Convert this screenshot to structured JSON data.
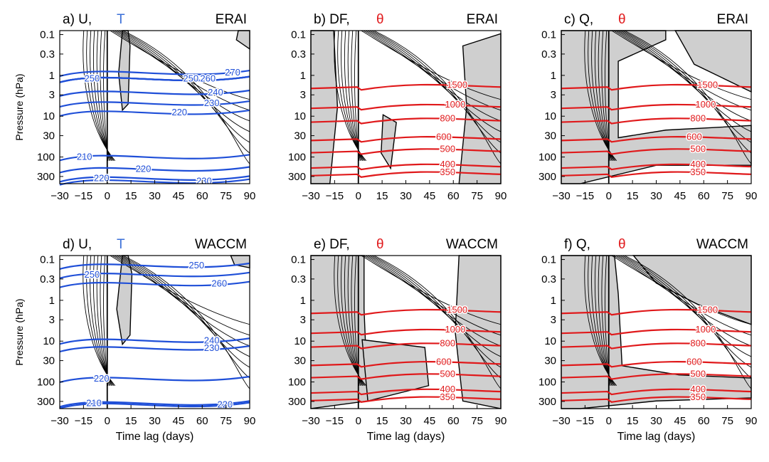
{
  "figure": {
    "shared": {
      "ylabel": "Pressure (hPa)",
      "xlabel": "Time lag (days)",
      "xticks": [
        "−30",
        "−15",
        "0",
        "15",
        "30",
        "45",
        "60",
        "75",
        "90"
      ],
      "yticks": [
        "0.1",
        "0.3",
        "1",
        "3",
        "10",
        "30",
        "100",
        "300"
      ]
    },
    "colors": {
      "T_contour": "#1f4fd8",
      "theta_contour": "#e0191b",
      "shading": "#cfcfcf",
      "contour": "#000000",
      "t_label": "#3a6fd8",
      "theta_label": "#e0191b"
    }
  },
  "chart_data": [
    {
      "id": "a",
      "type": "contour",
      "panel_label": "a) U,",
      "overlay_symbol": "T",
      "source": "ERAI",
      "xlim": [
        -30,
        90
      ],
      "x_ticks": [
        -30,
        -15,
        0,
        15,
        30,
        45,
        60,
        75,
        90
      ],
      "y_ticks_hPa": [
        0.1,
        0.3,
        1,
        3,
        10,
        30,
        100,
        300
      ],
      "y_scale": "log",
      "overlay_variable": "T",
      "overlay_contour_labels": [
        "250",
        "250",
        "260",
        "270",
        "240",
        "230",
        "220",
        "210",
        "220",
        "220",
        "230"
      ]
    },
    {
      "id": "b",
      "type": "contour",
      "panel_label": "b) DF,",
      "overlay_symbol": "θ",
      "source": "ERAI",
      "xlim": [
        -30,
        90
      ],
      "x_ticks": [
        -30,
        -15,
        0,
        15,
        30,
        45,
        60,
        75,
        90
      ],
      "y_ticks_hPa": [
        0.1,
        0.3,
        1,
        3,
        10,
        30,
        100,
        300
      ],
      "y_scale": "log",
      "overlay_variable": "θ",
      "overlay_contour_labels": [
        "1500",
        "1000",
        "800",
        "600",
        "500",
        "400",
        "350"
      ]
    },
    {
      "id": "c",
      "type": "contour",
      "panel_label": "c) Q,",
      "overlay_symbol": "θ",
      "source": "ERAI",
      "xlim": [
        -30,
        90
      ],
      "x_ticks": [
        -30,
        -15,
        0,
        15,
        30,
        45,
        60,
        75,
        90
      ],
      "y_ticks_hPa": [
        0.1,
        0.3,
        1,
        3,
        10,
        30,
        100,
        300
      ],
      "y_scale": "log",
      "overlay_variable": "θ",
      "overlay_contour_labels": [
        "1500",
        "1000",
        "800",
        "600",
        "500",
        "400",
        "350"
      ]
    },
    {
      "id": "d",
      "type": "contour",
      "panel_label": "d) U,",
      "overlay_symbol": "T",
      "source": "WACCM",
      "xlim": [
        -30,
        90
      ],
      "x_ticks": [
        -30,
        -15,
        0,
        15,
        30,
        45,
        60,
        75,
        90
      ],
      "y_ticks_hPa": [
        0.1,
        0.3,
        1,
        3,
        10,
        30,
        100,
        300
      ],
      "y_scale": "log",
      "overlay_variable": "T",
      "overlay_contour_labels": [
        "250",
        "250",
        "260",
        "240",
        "230",
        "220",
        "210",
        "220"
      ]
    },
    {
      "id": "e",
      "type": "contour",
      "panel_label": "e) DF,",
      "overlay_symbol": "θ",
      "source": "WACCM",
      "xlim": [
        -30,
        90
      ],
      "x_ticks": [
        -30,
        -15,
        0,
        15,
        30,
        45,
        60,
        75,
        90
      ],
      "y_ticks_hPa": [
        0.1,
        0.3,
        1,
        3,
        10,
        30,
        100,
        300
      ],
      "y_scale": "log",
      "overlay_variable": "θ",
      "overlay_contour_labels": [
        "1500",
        "1000",
        "800",
        "600",
        "500",
        "400",
        "350"
      ]
    },
    {
      "id": "f",
      "type": "contour",
      "panel_label": "f) Q,",
      "overlay_symbol": "θ",
      "source": "WACCM",
      "xlim": [
        -30,
        90
      ],
      "x_ticks": [
        -30,
        -15,
        0,
        15,
        30,
        45,
        60,
        75,
        90
      ],
      "y_ticks_hPa": [
        0.1,
        0.3,
        1,
        3,
        10,
        30,
        100,
        300
      ],
      "y_scale": "log",
      "overlay_variable": "θ",
      "overlay_contour_labels": [
        "1500",
        "1000",
        "800",
        "600",
        "500",
        "400",
        "350"
      ]
    }
  ]
}
